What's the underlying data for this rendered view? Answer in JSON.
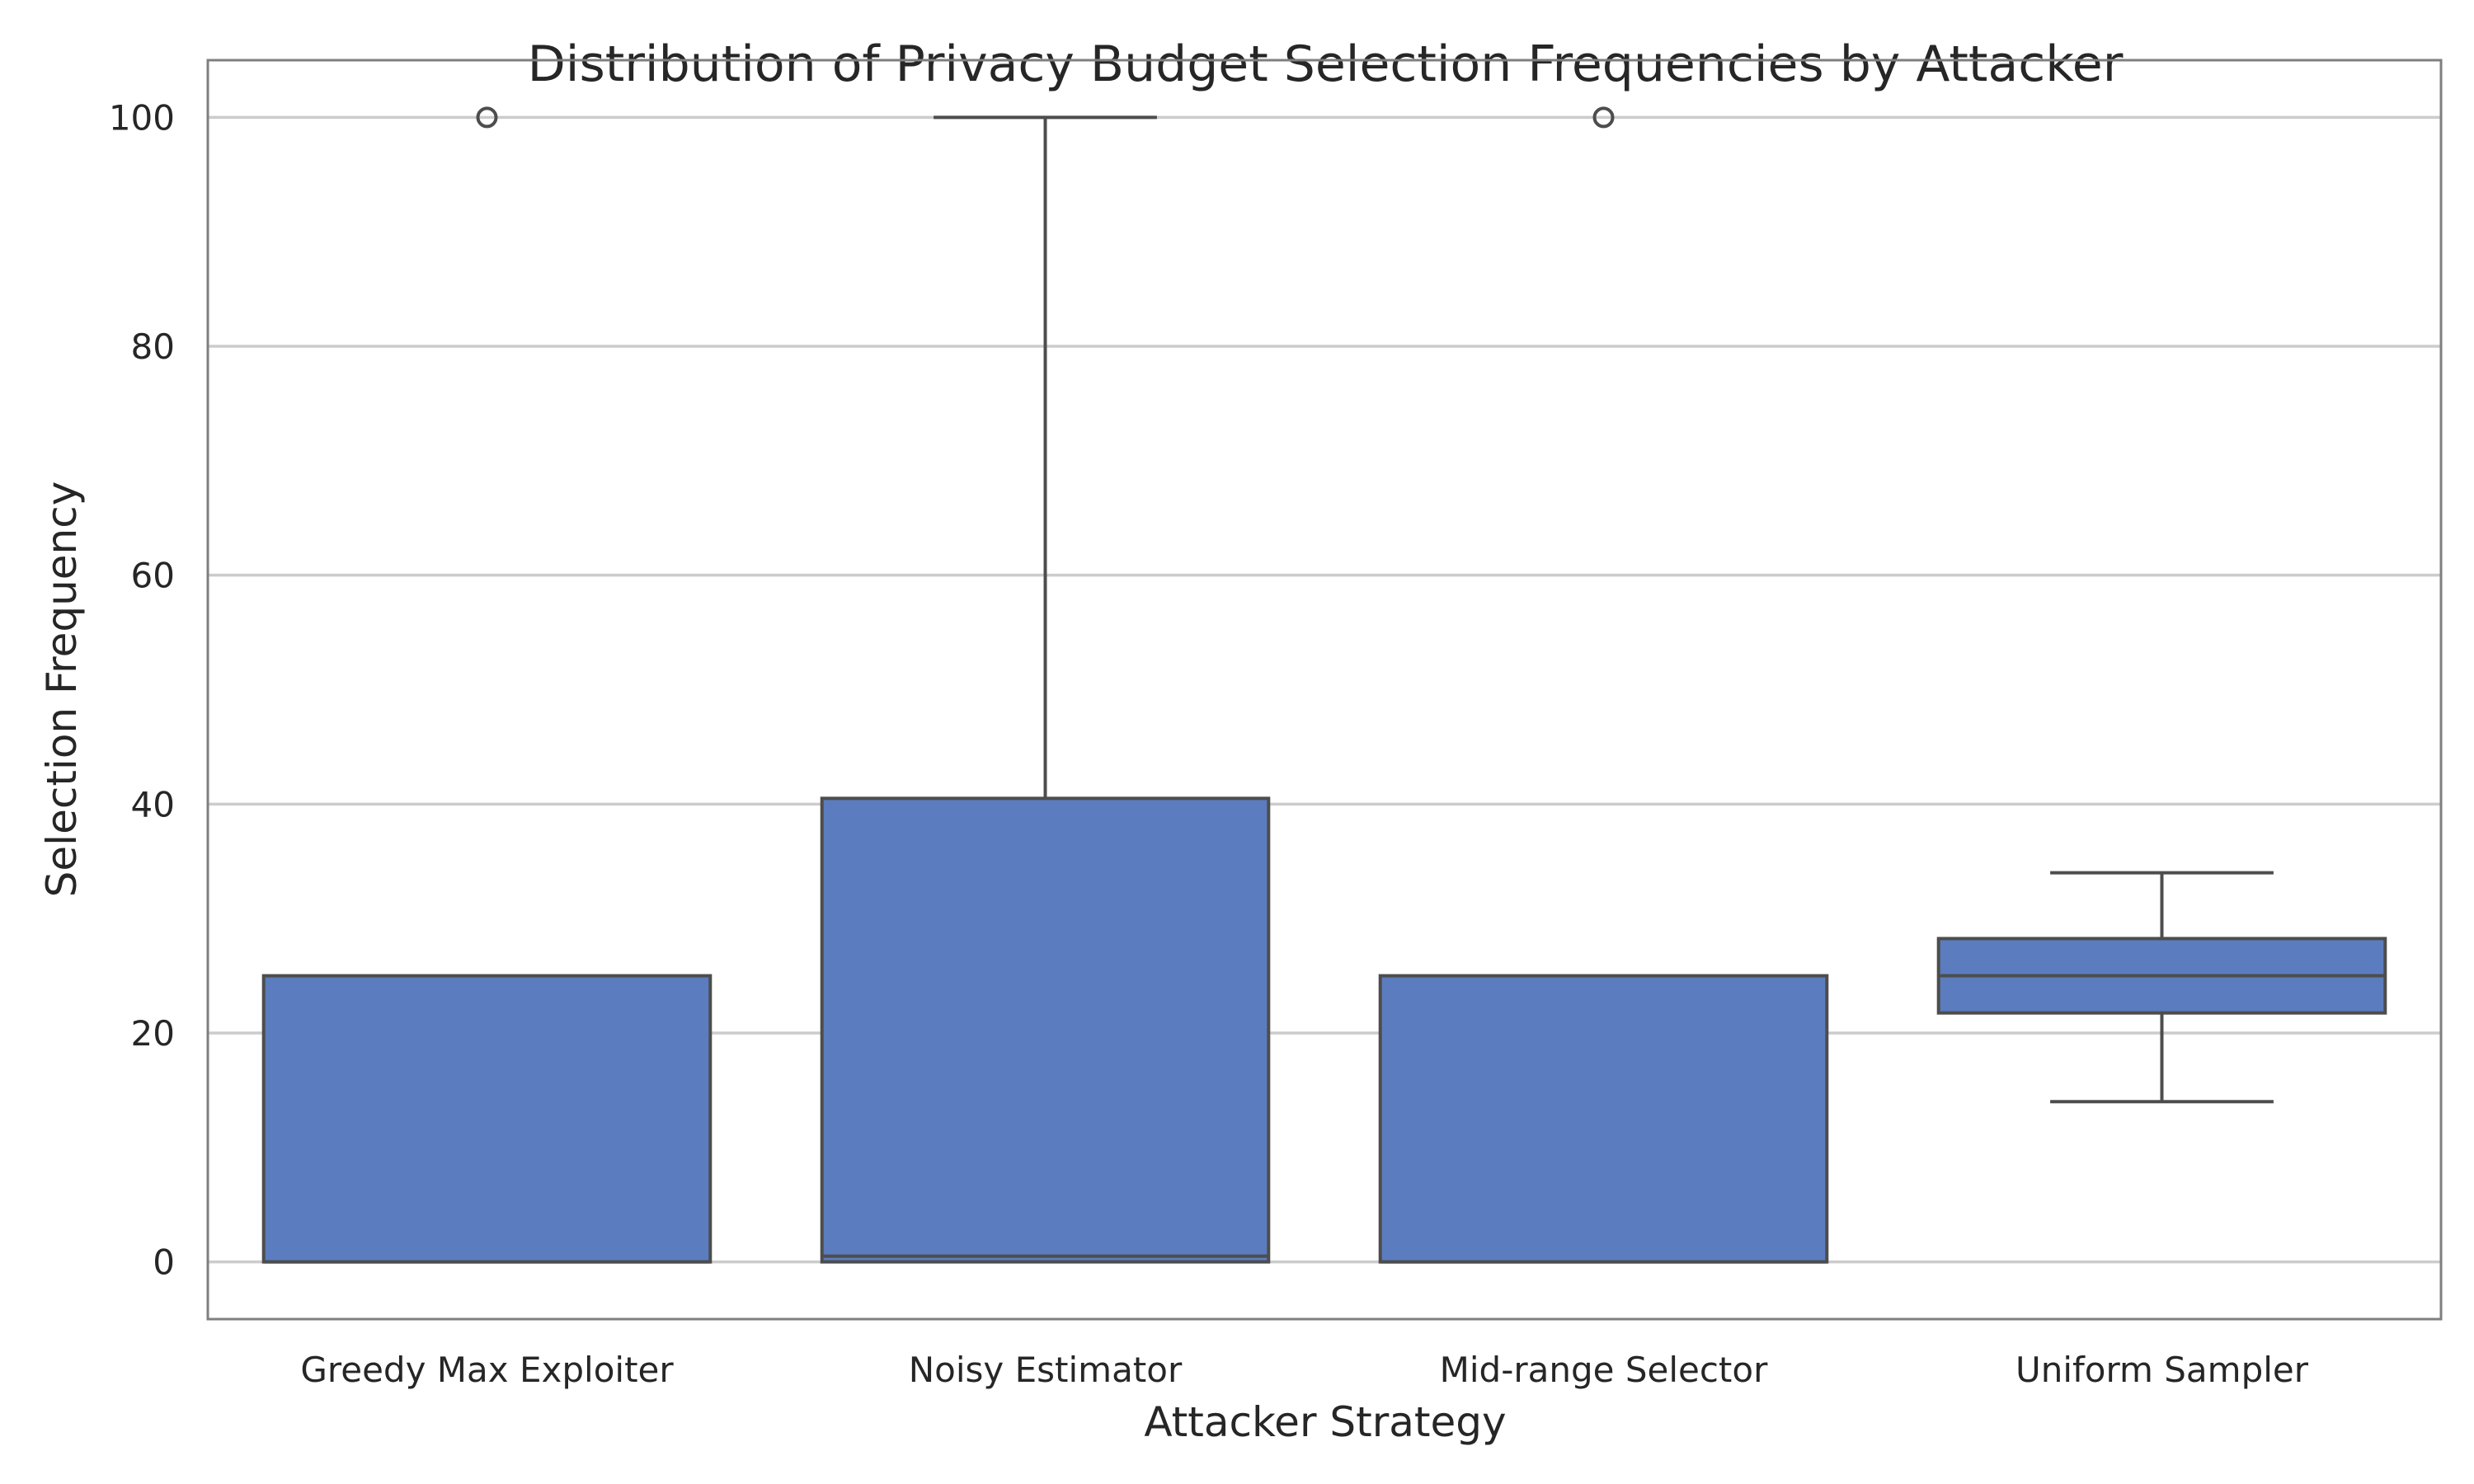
{
  "chart_data": {
    "type": "box",
    "title": "Distribution of Privacy Budget Selection Frequencies by Attacker",
    "xlabel": "Attacker Strategy",
    "ylabel": "Selection Frequency",
    "ylim": [
      -5,
      105
    ],
    "yticks": [
      0,
      20,
      40,
      60,
      80,
      100
    ],
    "grid": "horizontal",
    "box_color": "#5b7dbf",
    "categories": [
      "Greedy Max Exploiter",
      "Noisy Estimator",
      "Mid-range Selector",
      "Uniform Sampler"
    ],
    "boxes": [
      {
        "whisker_low": 0,
        "q1": 0,
        "median": 0,
        "q3": 25,
        "whisker_high": 25,
        "fliers": [
          100
        ]
      },
      {
        "whisker_low": 0,
        "q1": 0,
        "median": 0.5,
        "q3": 40.5,
        "whisker_high": 100,
        "fliers": []
      },
      {
        "whisker_low": 0,
        "q1": 0,
        "median": 0,
        "q3": 25,
        "whisker_high": 25,
        "fliers": [
          100
        ]
      },
      {
        "whisker_low": 14,
        "q1": 21.75,
        "median": 25,
        "q3": 28.25,
        "whisker_high": 34,
        "fliers": []
      }
    ]
  }
}
